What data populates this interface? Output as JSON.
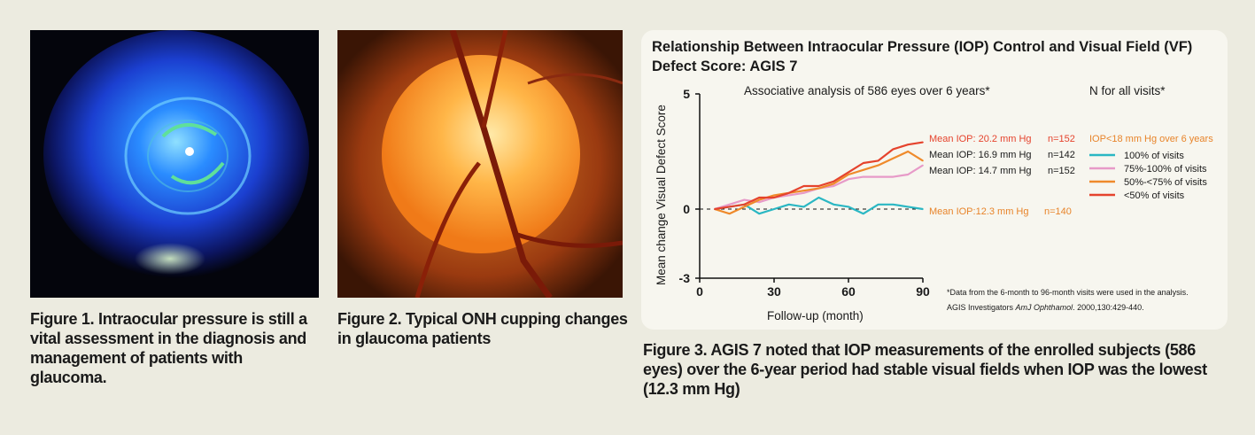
{
  "figures": [
    {
      "caption": "Figure 1. Intraocular pressure is still a vital assessment in the diagnosis and management of patients with glaucoma."
    },
    {
      "caption": "Figure 2. Typical ONH cupping changes in glaucoma patients"
    },
    {
      "caption": "Figure 3. AGIS 7 noted that IOP measurements of the enrolled subjects (586 eyes) over the 6-year period had stable visual fields when IOP was the lowest (12.3 mm Hg)"
    }
  ],
  "chart_data": {
    "type": "line",
    "title": "Relationship Between Intraocular Pressure (IOP) Control and Visual Field (VF) Defect Score: AGIS 7",
    "subtitle": "Associative analysis of 586 eyes over 6 years*",
    "xlabel": "Follow-up (month)",
    "ylabel": "Mean change Visual Defect Score",
    "xlim": [
      0,
      90
    ],
    "ylim": [
      -3,
      5
    ],
    "xticks": [
      "0",
      "30",
      "60",
      "90"
    ],
    "yticks": [
      "5",
      "0",
      "-3"
    ],
    "legend_heading": "N for all visits*",
    "legend_subheading": "IOP<18 mm Hg over 6 years",
    "legend_position": "right",
    "grid": false,
    "reference_line_y": 0,
    "footnote": "*Data from the 6-month to 96-month visits were used in the analysis.",
    "citation_prefix": "AGIS Investigators ",
    "citation_journal": "AmJ Ophthamol",
    "citation_suffix": ". 2000,130:429-440.",
    "series": [
      {
        "name": "100% of visits",
        "color": "#2ab7c3",
        "annotation": "Mean IOP:12.3 mm Hg",
        "n": "n=140",
        "label_color": "#e8842a",
        "x": [
          6,
          12,
          18,
          24,
          30,
          36,
          42,
          48,
          54,
          60,
          66,
          72,
          78,
          84,
          90
        ],
        "y": [
          0,
          0.1,
          0.2,
          -0.2,
          0,
          0.2,
          0.1,
          0.5,
          0.2,
          0.1,
          -0.2,
          0.2,
          0.2,
          0.1,
          0
        ]
      },
      {
        "name": "75%-100% of visits",
        "color": "#e79ac8",
        "annotation": "Mean IOP: 14.7 mm Hg",
        "n": "n=152",
        "label_color": "#1a1a1a",
        "x": [
          6,
          12,
          18,
          24,
          30,
          36,
          42,
          48,
          54,
          60,
          66,
          72,
          78,
          84,
          90
        ],
        "y": [
          0,
          0.2,
          0.4,
          0.3,
          0.5,
          0.6,
          0.7,
          0.9,
          1.0,
          1.3,
          1.4,
          1.4,
          1.4,
          1.5,
          1.9
        ]
      },
      {
        "name": "50%-<75% of visits",
        "color": "#ef8a2b",
        "annotation": "Mean IOP: 16.9 mm Hg",
        "n": "n=142",
        "label_color": "#1a1a1a",
        "x": [
          6,
          12,
          18,
          24,
          30,
          36,
          42,
          48,
          54,
          60,
          66,
          72,
          78,
          84,
          90
        ],
        "y": [
          0,
          -0.2,
          0.1,
          0.4,
          0.6,
          0.7,
          0.8,
          0.9,
          1.1,
          1.5,
          1.7,
          1.9,
          2.2,
          2.5,
          2.1
        ]
      },
      {
        "name": "<50% of visits",
        "color": "#e5432d",
        "annotation": "Mean IOP: 20.2 mm Hg",
        "n": "n=152",
        "label_color": "#e5432d",
        "x": [
          6,
          12,
          18,
          24,
          30,
          36,
          42,
          48,
          54,
          60,
          66,
          72,
          78,
          84,
          90
        ],
        "y": [
          0,
          0.1,
          0.2,
          0.5,
          0.5,
          0.7,
          1.0,
          1.0,
          1.2,
          1.6,
          2.0,
          2.1,
          2.6,
          2.8,
          2.9
        ]
      }
    ]
  },
  "icons": {
    "photo1": "eye-gonioscopy-photo",
    "photo2": "optic-nerve-head-photo"
  }
}
